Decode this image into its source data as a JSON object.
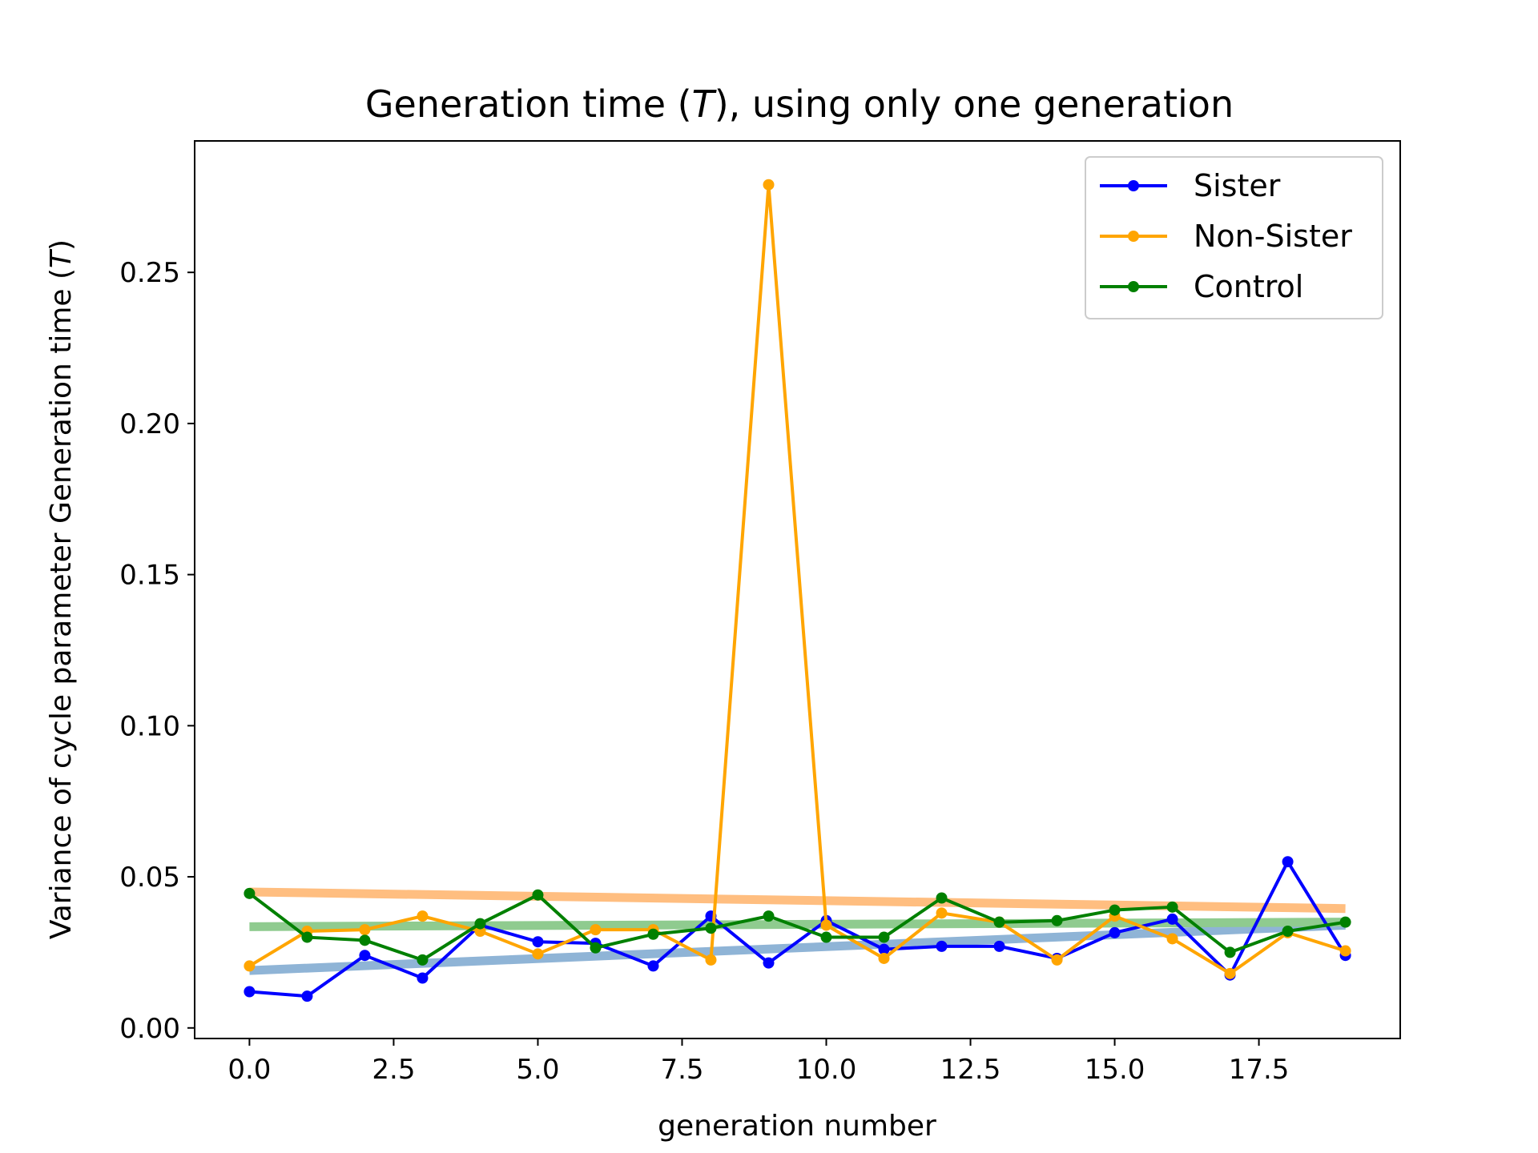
{
  "chart_data": {
    "type": "line",
    "title": "Generation time (T), using only one generation",
    "title_parts": [
      "Generation time (",
      "T",
      "), using only one generation"
    ],
    "xlabel": "generation number",
    "ylabel": "Variance of cycle parameter Generation time (T)",
    "ylabel_parts": [
      "Variance of cycle parameter Generation time (",
      "T",
      ")"
    ],
    "xlim": [
      -0.95,
      19.95
    ],
    "ylim": [
      -0.0035,
      0.2935
    ],
    "xticks": [
      0.0,
      2.5,
      5.0,
      7.5,
      10.0,
      12.5,
      15.0,
      17.5
    ],
    "xtick_labels": [
      "0.0",
      "2.5",
      "5.0",
      "7.5",
      "10.0",
      "12.5",
      "15.0",
      "17.5"
    ],
    "yticks": [
      0.0,
      0.05,
      0.1,
      0.15,
      0.2,
      0.25
    ],
    "ytick_labels": [
      "0.00",
      "0.05",
      "0.10",
      "0.15",
      "0.20",
      "0.25"
    ],
    "grid": false,
    "legend_position": "top-right",
    "x": [
      0,
      1,
      2,
      3,
      4,
      5,
      6,
      7,
      8,
      9,
      10,
      11,
      12,
      13,
      14,
      15,
      16,
      17,
      18,
      19
    ],
    "series": [
      {
        "name": "Sister",
        "color": "#0000ff",
        "values": [
          0.012,
          0.0105,
          0.024,
          0.0165,
          0.034,
          0.0285,
          0.028,
          0.0205,
          0.037,
          0.0215,
          0.0355,
          0.026,
          0.027,
          0.027,
          0.023,
          0.0315,
          0.036,
          0.0175,
          0.055,
          0.024
        ],
        "trend": {
          "color": "#8fb4d6",
          "start": 0.019,
          "end": 0.034
        }
      },
      {
        "name": "Non-Sister",
        "color": "#ffa500",
        "values": [
          0.0205,
          0.032,
          0.0325,
          0.037,
          0.032,
          0.0245,
          0.0325,
          0.0325,
          0.0225,
          0.279,
          0.034,
          0.023,
          0.038,
          0.035,
          0.0225,
          0.037,
          0.0295,
          0.018,
          0.0315,
          0.0255
        ],
        "trend": {
          "color": "#ffbe80",
          "start": 0.045,
          "end": 0.0395
        }
      },
      {
        "name": "Control",
        "color": "#008000",
        "values": [
          0.0445,
          0.03,
          0.029,
          0.0225,
          0.0345,
          0.044,
          0.0265,
          0.031,
          0.033,
          0.037,
          0.03,
          0.03,
          0.043,
          0.035,
          0.0355,
          0.039,
          0.04,
          0.025,
          0.032,
          0.035
        ],
        "trend": {
          "color": "#8fcb8f",
          "start": 0.0335,
          "end": 0.035
        }
      }
    ]
  }
}
